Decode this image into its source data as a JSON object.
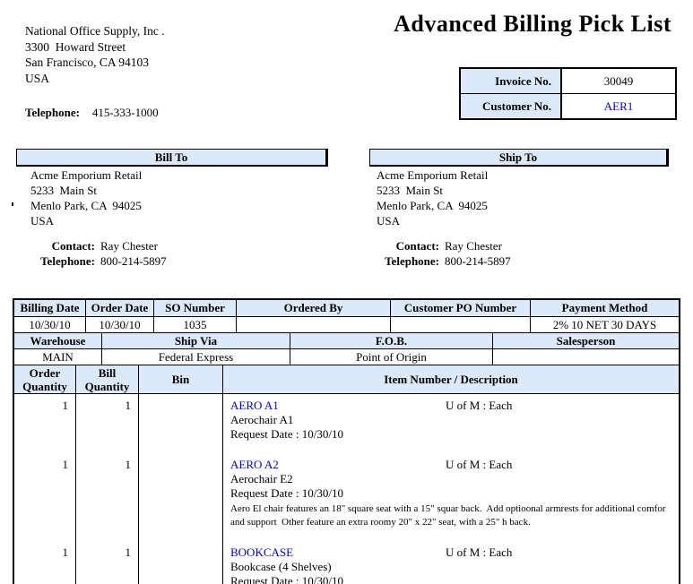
{
  "title": "Advanced Billing Pick List",
  "colors": {
    "header_bg": "#DBE9FA",
    "link_blue": "#0000CC",
    "border": "#000000"
  },
  "company": {
    "name": "National Office Supply, Inc .",
    "street": "3300  Howard Street",
    "city": "San Francisco, CA 94103",
    "country": "USA",
    "phone_label": "Telephone:",
    "phone": "415-333-1000"
  },
  "invoice_box": {
    "invoice_label": "Invoice No.",
    "invoice_value": "30049",
    "customer_label": "Customer No.",
    "customer_value": "AER1"
  },
  "bill_to": {
    "header": "Bill To",
    "line1": "Acme Emporium Retail",
    "line2": "5233  Main St",
    "line3": "Menlo Park, CA  94025",
    "line4": "USA",
    "contact_label": "Contact:",
    "contact": "Ray Chester",
    "phone_label": "Telephone:",
    "phone": "800-214-5897"
  },
  "ship_to": {
    "header": "Ship To",
    "line1": "Acme Emporium Retail",
    "line2": "5233  Main St",
    "line3": "Menlo Park, CA  94025",
    "line4": "USA",
    "contact_label": "Contact:",
    "contact": "Ray Chester",
    "phone_label": "Telephone:",
    "phone": "800-214-5897"
  },
  "order_table": {
    "row1_headers": [
      "Billing Date",
      "Order Date",
      "SO Number",
      "Ordered By",
      "Customer PO Number",
      "Payment Method"
    ],
    "row1_values": [
      "10/30/10",
      "10/30/10",
      "1035",
      "",
      "",
      "2% 10 NET 30 DAYS"
    ],
    "row2_headers": [
      "Warehouse",
      "Ship Via",
      "F.O.B.",
      "Salesperson"
    ],
    "row2_values": [
      "MAIN",
      "Federal Express",
      "Point of Origin",
      ""
    ],
    "item_headers": [
      "Order Quantity",
      "Bill Quantity",
      "Bin",
      "Item Number / Description"
    ]
  },
  "items": [
    {
      "order_qty": "1",
      "bill_qty": "1",
      "bin": "",
      "item_number": "AERO A1",
      "uom": "U of M : Each",
      "description": "Aerochair A1",
      "request_date": "Request Date : 10/30/10",
      "long_description": ""
    },
    {
      "order_qty": "1",
      "bill_qty": "1",
      "bin": "",
      "item_number": "AERO A2",
      "uom": "U of M : Each",
      "description": "Aerochair E2",
      "request_date": "Request Date : 10/30/10",
      "long_description": "Aero El chair features an 18\" square seat with a 15\" squar back.  Add optioonal armrests for additional comfor and support  Other feature an extra roomy 20\" x 22\" seat, with a 25\" h back."
    },
    {
      "order_qty": "1",
      "bill_qty": "1",
      "bin": "",
      "item_number": "BOOKCASE",
      "uom": "U of M : Each",
      "description": "Bookcase (4 Shelves)",
      "request_date": "Request Date : 10/30/10",
      "long_description": ""
    }
  ]
}
